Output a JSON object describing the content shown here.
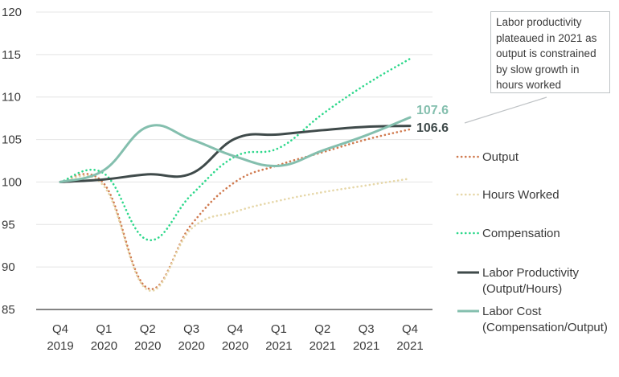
{
  "chart_data": {
    "type": "line",
    "x": [
      "Q4\n2019",
      "Q1\n2020",
      "Q2\n2020",
      "Q3\n2020",
      "Q4\n2020",
      "Q1\n2021",
      "Q2\n2021",
      "Q3\n2021",
      "Q4\n2021"
    ],
    "yticks": [
      85,
      90,
      95,
      100,
      105,
      110,
      115,
      120
    ],
    "ylim": [
      85,
      120
    ],
    "grid": true,
    "legend_position": "right",
    "series": [
      {
        "name": "Output",
        "color": "#d07a4f",
        "style": "dotted",
        "values": [
          100,
          99.8,
          87.5,
          95,
          100,
          102,
          103.5,
          105,
          106.2
        ]
      },
      {
        "name": "Hours Worked",
        "color": "#e6d7a8",
        "style": "dotted",
        "values": [
          100,
          99.5,
          87.3,
          94.5,
          96.5,
          97.8,
          98.8,
          99.6,
          100.4
        ]
      },
      {
        "name": "Compensation",
        "color": "#2fd88c",
        "style": "dotted",
        "values": [
          100,
          101,
          93.2,
          98.5,
          103,
          104,
          108,
          111.5,
          114.5
        ]
      },
      {
        "name": "Labor Productivity (Output/Hours)",
        "color": "#3f4a4a",
        "style": "solid",
        "values": [
          100,
          100.3,
          100.9,
          101,
          105.1,
          105.6,
          106.1,
          106.5,
          106.6
        ]
      },
      {
        "name": "Labor Cost (Compensation/Output)",
        "color": "#84bfae",
        "style": "solid",
        "values": [
          100,
          101.4,
          106.5,
          105,
          103,
          101.9,
          103.7,
          105.5,
          107.6
        ]
      }
    ],
    "end_labels": [
      {
        "text": "107.6",
        "color": "#84bfae"
      },
      {
        "text": "106.6",
        "color": "#3f4a4a"
      }
    ],
    "annotation": "Labor productivity plateaued in 2021 as output is constrained by slow growth in hours worked"
  }
}
